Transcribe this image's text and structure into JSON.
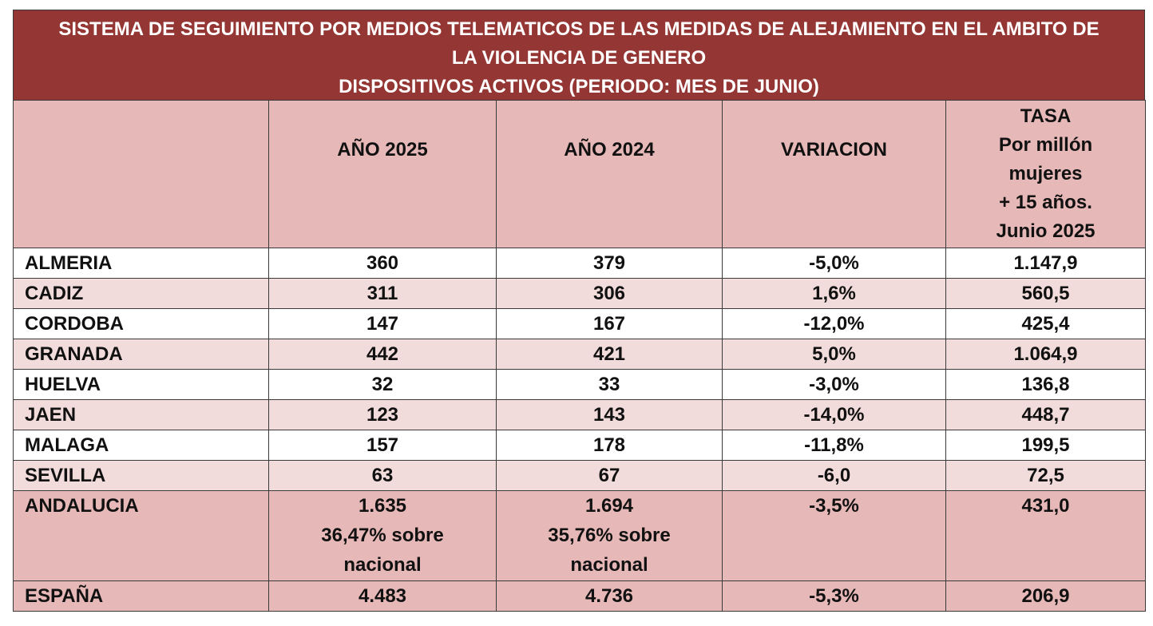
{
  "title": {
    "line1": "SISTEMA DE SEGUIMIENTO POR MEDIOS TELEMATICOS DE LAS MEDIDAS DE ALEJAMIENTO EN EL AMBITO DE",
    "line2": "LA VIOLENCIA DE GENERO",
    "line3": "DISPOSITIVOS ACTIVOS (PERIODO: MES DE JUNIO)"
  },
  "header": {
    "col_2025": "AÑO 2025",
    "col_2024": "AÑO 2024",
    "col_variacion": "VARIACION",
    "tasa_lines": [
      "TASA",
      "Por millón",
      "mujeres",
      "+ 15 años.",
      "Junio 2025"
    ]
  },
  "rows": [
    {
      "name": "ALMERIA",
      "y2025": "360",
      "y2024": "379",
      "variacion": "-5,0%",
      "tasa": "1.147,9"
    },
    {
      "name": "CADIZ",
      "y2025": "311",
      "y2024": "306",
      "variacion": "1,6%",
      "tasa": "560,5"
    },
    {
      "name": "CORDOBA",
      "y2025": "147",
      "y2024": "167",
      "variacion": "-12,0%",
      "tasa": "425,4"
    },
    {
      "name": "GRANADA",
      "y2025": "442",
      "y2024": "421",
      "variacion": "5,0%",
      "tasa": "1.064,9"
    },
    {
      "name": "HUELVA",
      "y2025": "32",
      "y2024": "33",
      "variacion": "-3,0%",
      "tasa": "136,8"
    },
    {
      "name": "JAEN",
      "y2025": "123",
      "y2024": "143",
      "variacion": "-14,0%",
      "tasa": "448,7"
    },
    {
      "name": "MALAGA",
      "y2025": "157",
      "y2024": "178",
      "variacion": "-11,8%",
      "tasa": "199,5"
    },
    {
      "name": "SEVILLA",
      "y2025": "63",
      "y2024": "67",
      "variacion": "-6,0",
      "tasa": "72,5"
    }
  ],
  "andalucia": {
    "name": "ANDALUCIA",
    "y2025": "1.635",
    "y2025_sub1": "36,47% sobre",
    "y2025_sub2": "nacional",
    "y2024": "1.694",
    "y2024_sub1": "35,76% sobre",
    "y2024_sub2": "nacional",
    "variacion": "-3,5%",
    "tasa": "431,0"
  },
  "espana": {
    "name": "ESPAÑA",
    "y2025": "4.483",
    "y2024": "4.736",
    "variacion": "-5,3%",
    "tasa": "206,9"
  },
  "colors": {
    "title_bg": "#943634",
    "header_bg": "#e6b8b7",
    "stripe_bg": "#f2dcdb"
  }
}
